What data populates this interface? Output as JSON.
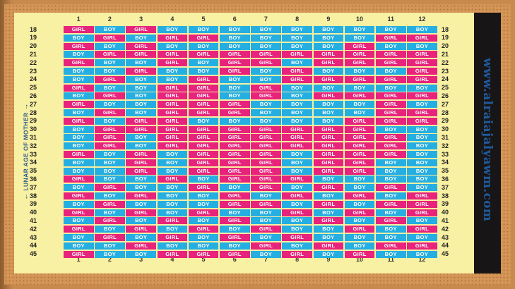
{
  "chart": {
    "months": [
      "1",
      "2",
      "3",
      "4",
      "5",
      "6",
      "7",
      "8",
      "9",
      "10",
      "11",
      "12"
    ],
    "side_label": "LUNAR AGE OF MOTHER",
    "website": "www.alraiajalyawm.com",
    "rows": [
      {
        "age": "18",
        "cells": [
          "GIRL",
          "BOY",
          "GIRL",
          "BOY",
          "BOY",
          "BOY",
          "BOY",
          "BOY",
          "BOY",
          "BOY",
          "BOY",
          "BOY"
        ]
      },
      {
        "age": "19",
        "cells": [
          "BOY",
          "GIRL",
          "BOY",
          "GIRL",
          "GIRL",
          "BOY",
          "BOY",
          "BOY",
          "BOY",
          "BOY",
          "GIRL",
          "GIRL"
        ]
      },
      {
        "age": "20",
        "cells": [
          "GIRL",
          "BOY",
          "GIRL",
          "BOY",
          "BOY",
          "BOY",
          "BOY",
          "BOY",
          "BOY",
          "GIRL",
          "BOY",
          "BOY"
        ]
      },
      {
        "age": "21",
        "cells": [
          "BOY",
          "GIRL",
          "GIRL",
          "GIRL",
          "GIRL",
          "GIRL",
          "GIRL",
          "GIRL",
          "GIRL",
          "GIRL",
          "GIRL",
          "GIRL"
        ]
      },
      {
        "age": "22",
        "cells": [
          "GIRL",
          "BOY",
          "BOY",
          "GIRL",
          "BOY",
          "GIRL",
          "GIRL",
          "BOY",
          "GIRL",
          "GIRL",
          "GIRL",
          "GIRL"
        ]
      },
      {
        "age": "23",
        "cells": [
          "BOY",
          "BOY",
          "GIRL",
          "BOY",
          "BOY",
          "GIRL",
          "BOY",
          "GIRL",
          "BOY",
          "BOY",
          "BOY",
          "GIRL"
        ]
      },
      {
        "age": "24",
        "cells": [
          "BOY",
          "GIRL",
          "BOY",
          "BOY",
          "GIRL",
          "BOY",
          "BOY",
          "GIRL",
          "GIRL",
          "GIRL",
          "GIRL",
          "GIRL"
        ]
      },
      {
        "age": "25",
        "cells": [
          "GIRL",
          "BOY",
          "BOY",
          "GIRL",
          "GIRL",
          "BOY",
          "GIRL",
          "BOY",
          "BOY",
          "BOY",
          "BOY",
          "BOY"
        ]
      },
      {
        "age": "26",
        "cells": [
          "BOY",
          "GIRL",
          "BOY",
          "GIRL",
          "GIRL",
          "BOY",
          "GIRL",
          "BOY",
          "GIRL",
          "GIRL",
          "GIRL",
          "GIRL"
        ]
      },
      {
        "age": "27",
        "cells": [
          "GIRL",
          "BOY",
          "BOY",
          "GIRL",
          "GIRL",
          "GIRL",
          "BOY",
          "BOY",
          "BOY",
          "BOY",
          "GIRL",
          "BOY"
        ]
      },
      {
        "age": "28",
        "cells": [
          "BOY",
          "GIRL",
          "BOY",
          "GIRL",
          "GIRL",
          "GIRL",
          "BOY",
          "BOY",
          "BOY",
          "BOY",
          "GIRL",
          "GIRL"
        ]
      },
      {
        "age": "29",
        "cells": [
          "GIRL",
          "BOY",
          "GIRL",
          "GIRL",
          "BOY",
          "BOY",
          "BOY",
          "BOY",
          "BOY",
          "GIRL",
          "GIRL",
          "GIRL"
        ]
      },
      {
        "age": "30",
        "cells": [
          "BOY",
          "GIRL",
          "GIRL",
          "GIRL",
          "GIRL",
          "GIRL",
          "GIRL",
          "GIRL",
          "GIRL",
          "GIRL",
          "BOY",
          "BOY"
        ]
      },
      {
        "age": "31",
        "cells": [
          "BOY",
          "GIRL",
          "BOY",
          "GIRL",
          "GIRL",
          "GIRL",
          "GIRL",
          "GIRL",
          "GIRL",
          "GIRL",
          "GIRL",
          "BOY"
        ]
      },
      {
        "age": "32",
        "cells": [
          "BOY",
          "GIRL",
          "BOY",
          "GIRL",
          "GIRL",
          "GIRL",
          "GIRL",
          "GIRL",
          "GIRL",
          "GIRL",
          "GIRL",
          "BOY"
        ]
      },
      {
        "age": "33",
        "cells": [
          "GIRL",
          "BOY",
          "GIRL",
          "BOY",
          "GIRL",
          "GIRL",
          "GIRL",
          "BOY",
          "GIRL",
          "GIRL",
          "GIRL",
          "BOY"
        ]
      },
      {
        "age": "34",
        "cells": [
          "BOY",
          "BOY",
          "GIRL",
          "BOY",
          "GIRL",
          "GIRL",
          "GIRL",
          "BOY",
          "GIRL",
          "GIRL",
          "BOY",
          "BOY"
        ]
      },
      {
        "age": "35",
        "cells": [
          "BOY",
          "BOY",
          "GIRL",
          "BOY",
          "GIRL",
          "GIRL",
          "GIRL",
          "BOY",
          "GIRL",
          "GIRL",
          "BOY",
          "BOY"
        ]
      },
      {
        "age": "36",
        "cells": [
          "GIRL",
          "BOY",
          "BOY",
          "GIRL",
          "BOY",
          "GIRL",
          "GIRL",
          "GIRL",
          "BOY",
          "BOY",
          "BOY",
          "BOY"
        ]
      },
      {
        "age": "37",
        "cells": [
          "BOY",
          "GIRL",
          "BOY",
          "BOY",
          "GIRL",
          "BOY",
          "GIRL",
          "BOY",
          "GIRL",
          "BOY",
          "GIRL",
          "BOY"
        ]
      },
      {
        "age": "38",
        "cells": [
          "GIRL",
          "BOY",
          "GIRL",
          "BOY",
          "BOY",
          "GIRL",
          "BOY",
          "GIRL",
          "BOY",
          "GIRL",
          "BOY",
          "GIRL"
        ]
      },
      {
        "age": "39",
        "cells": [
          "BOY",
          "GIRL",
          "BOY",
          "BOY",
          "BOY",
          "GIRL",
          "GIRL",
          "BOY",
          "GIRL",
          "BOY",
          "GIRL",
          "GIRL"
        ]
      },
      {
        "age": "40",
        "cells": [
          "GIRL",
          "BOY",
          "GIRL",
          "BOY",
          "GIRL",
          "BOY",
          "BOY",
          "GIRL",
          "BOY",
          "GIRL",
          "BOY",
          "GIRL"
        ]
      },
      {
        "age": "41",
        "cells": [
          "BOY",
          "GIRL",
          "BOY",
          "GIRL",
          "BOY",
          "GIRL",
          "BOY",
          "BOY",
          "GIRL",
          "BOY",
          "GIRL",
          "BOY"
        ]
      },
      {
        "age": "42",
        "cells": [
          "GIRL",
          "BOY",
          "GIRL",
          "BOY",
          "GIRL",
          "BOY",
          "GIRL",
          "BOY",
          "BOY",
          "GIRL",
          "BOY",
          "GIRL"
        ]
      },
      {
        "age": "43",
        "cells": [
          "BOY",
          "GIRL",
          "BOY",
          "GIRL",
          "BOY",
          "GIRL",
          "BOY",
          "GIRL",
          "BOY",
          "BOY",
          "BOY",
          "BOY"
        ]
      },
      {
        "age": "44",
        "cells": [
          "BOY",
          "BOY",
          "GIRL",
          "BOY",
          "BOY",
          "BOY",
          "GIRL",
          "BOY",
          "GIRL",
          "BOY",
          "GIRL",
          "GIRL"
        ]
      },
      {
        "age": "45",
        "cells": [
          "GIRL",
          "BOY",
          "BOY",
          "GIRL",
          "GIRL",
          "GIRL",
          "BOY",
          "GIRL",
          "BOY",
          "GIRL",
          "BOY",
          "BOY"
        ]
      }
    ]
  },
  "colors": {
    "girl": "#e7237c",
    "boy": "#25aee2",
    "chart_bg": "#f8f0a2",
    "frame": "#d39656",
    "website_text": "#1f5a9c"
  }
}
